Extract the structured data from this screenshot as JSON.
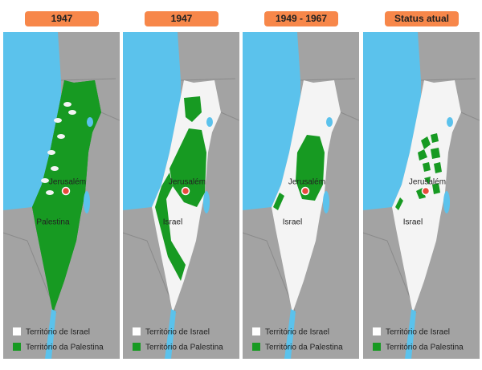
{
  "panels": [
    {
      "header": "1947",
      "labels": [
        "Jerusalém",
        "Palestina"
      ],
      "legend": [
        "Território de Israel",
        "Território da Palestina"
      ]
    },
    {
      "header": "1947",
      "labels": [
        "Jerusalém",
        "Israel"
      ],
      "legend": [
        "Território de Israel",
        "Território da Palestina"
      ]
    },
    {
      "header": "1949 - 1967",
      "labels": [
        "Jerusalém",
        "Israel"
      ],
      "legend": [
        "Território de Israel",
        "Território da Palestina"
      ]
    },
    {
      "header": "Status atual",
      "labels": [
        "Jerusalém",
        "Israel"
      ],
      "legend": [
        "Território de Israel",
        "Território da Palestina"
      ]
    }
  ]
}
